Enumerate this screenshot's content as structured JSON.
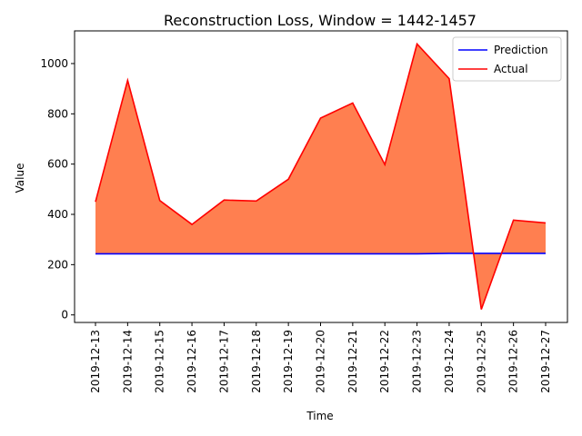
{
  "chart_data": {
    "type": "area",
    "title": "Reconstruction Loss, Window = 1442-1457",
    "xlabel": "Time",
    "ylabel": "Value",
    "x": [
      "2019-12-13",
      "2019-12-14",
      "2019-12-15",
      "2019-12-16",
      "2019-12-17",
      "2019-12-18",
      "2019-12-19",
      "2019-12-20",
      "2019-12-21",
      "2019-12-22",
      "2019-12-23",
      "2019-12-24",
      "2019-12-25",
      "2019-12-26",
      "2019-12-27"
    ],
    "ylim": [
      -30,
      1130
    ],
    "yticks": [
      0,
      200,
      400,
      600,
      800,
      1000
    ],
    "series": [
      {
        "name": "Prediction",
        "color": "#0000ff",
        "values": [
          243,
          243,
          243,
          243,
          243,
          243,
          243,
          243,
          243,
          243,
          243,
          245,
          245,
          245,
          245
        ]
      },
      {
        "name": "Actual",
        "color": "#ff0000",
        "values": [
          450,
          933,
          455,
          360,
          457,
          453,
          540,
          783,
          843,
          598,
          1078,
          940,
          22,
          377,
          366
        ]
      }
    ],
    "fill_between": {
      "color": "#ff7f50",
      "between": [
        "Prediction",
        "Actual"
      ]
    },
    "legend": "upper right",
    "grid": false
  }
}
